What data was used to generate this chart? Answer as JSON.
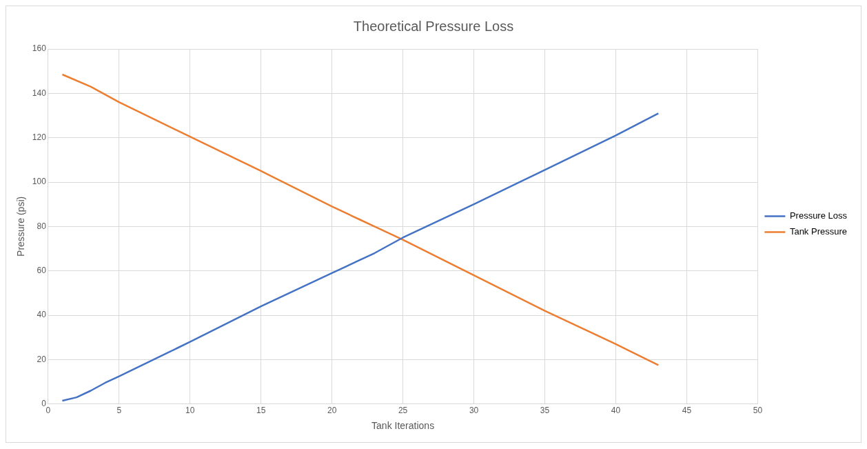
{
  "chart_data": {
    "type": "line",
    "title": "Theoretical Pressure Loss",
    "xlabel": "Tank Iterations",
    "ylabel": "Pressure (psi)",
    "xlim": [
      0,
      50
    ],
    "xticks": [
      0,
      5,
      10,
      15,
      20,
      25,
      30,
      35,
      40,
      45,
      50
    ],
    "ylim": [
      0,
      160
    ],
    "yticks": [
      0,
      20,
      40,
      60,
      80,
      100,
      120,
      140,
      160
    ],
    "grid": true,
    "legend": "right",
    "marker": "none",
    "line_style": "solid",
    "series": [
      {
        "name": "Pressure Loss",
        "color": "#4472c4",
        "x": [
          1,
          2,
          3,
          4,
          5,
          10,
          15,
          20,
          21,
          22,
          23,
          25,
          30,
          35,
          40,
          43
        ],
        "values": [
          1.5,
          3,
          6,
          9.5,
          12.5,
          28,
          44,
          59,
          62,
          65,
          68,
          75,
          90,
          105.5,
          121,
          131
        ]
      },
      {
        "name": "Tank Pressure",
        "color": "#ed7d31",
        "x": [
          1,
          3,
          5,
          10,
          15,
          20,
          22,
          23,
          25,
          30,
          35,
          40,
          43
        ],
        "values": [
          148.5,
          143,
          136,
          120.5,
          105,
          89,
          83,
          80,
          74,
          58,
          42,
          27,
          17.5
        ]
      }
    ]
  }
}
